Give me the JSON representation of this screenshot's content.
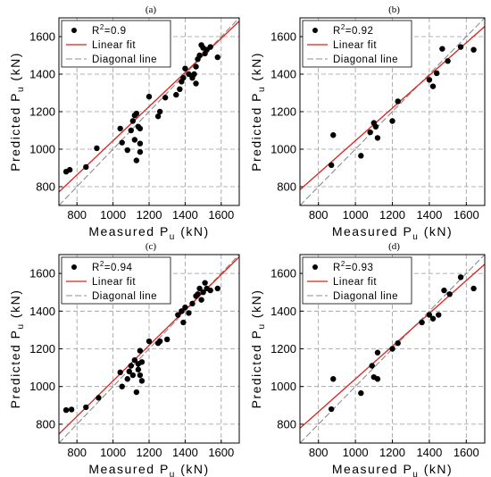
{
  "chart_data": [
    {
      "type": "scatter",
      "title": "(a)",
      "xlabel": "Measured P",
      "xlabel_sub": "u",
      "xlabel_unit": "(kN)",
      "ylabel": "Predicted P",
      "ylabel_sub": "u",
      "ylabel_unit": "(kN)",
      "xlim": [
        700,
        1700
      ],
      "ylim": [
        700,
        1700
      ],
      "xticks": [
        "800",
        "1000",
        "1200",
        "1400",
        "1600"
      ],
      "yticks": [
        "800",
        "1000",
        "1200",
        "1400",
        "1600"
      ],
      "grid": true,
      "legend": {
        "position": "top-left",
        "r2_label": "R",
        "r2_sup": "2",
        "r2_value": "=0.9",
        "linear_label": "Linear fit",
        "diagonal_label": "Diagonal line"
      },
      "fit": {
        "intercept": 135,
        "slope": 0.91
      },
      "points": [
        [
          740,
          880
        ],
        [
          760,
          890
        ],
        [
          850,
          905
        ],
        [
          910,
          1005
        ],
        [
          1040,
          1110
        ],
        [
          1050,
          1035
        ],
        [
          1080,
          995
        ],
        [
          1100,
          1100
        ],
        [
          1110,
          1150
        ],
        [
          1120,
          1180
        ],
        [
          1120,
          1050
        ],
        [
          1130,
          1190
        ],
        [
          1130,
          940
        ],
        [
          1140,
          1120
        ],
        [
          1150,
          1110
        ],
        [
          1150,
          1030
        ],
        [
          1150,
          985
        ],
        [
          1200,
          1280
        ],
        [
          1250,
          1175
        ],
        [
          1260,
          1200
        ],
        [
          1290,
          1275
        ],
        [
          1350,
          1290
        ],
        [
          1370,
          1320
        ],
        [
          1380,
          1360
        ],
        [
          1390,
          1380
        ],
        [
          1400,
          1430
        ],
        [
          1420,
          1400
        ],
        [
          1440,
          1380
        ],
        [
          1450,
          1400
        ],
        [
          1460,
          1350
        ],
        [
          1460,
          1440
        ],
        [
          1470,
          1480
        ],
        [
          1480,
          1500
        ],
        [
          1490,
          1555
        ],
        [
          1500,
          1540
        ],
        [
          1510,
          1510
        ],
        [
          1520,
          1530
        ],
        [
          1540,
          1545
        ],
        [
          1580,
          1490
        ]
      ]
    },
    {
      "type": "scatter",
      "title": "(b)",
      "xlabel": "Measured P",
      "xlabel_sub": "u",
      "xlabel_unit": "(kN)",
      "ylabel": "Predicted P",
      "ylabel_sub": "u",
      "ylabel_unit": "(kN)",
      "xlim": [
        700,
        1700
      ],
      "ylim": [
        700,
        1700
      ],
      "xticks": [
        "800",
        "1000",
        "1200",
        "1400",
        "1600"
      ],
      "yticks": [
        "800",
        "1000",
        "1200",
        "1400",
        "1600"
      ],
      "grid": true,
      "legend": {
        "position": "top-left",
        "r2_label": "R",
        "r2_sup": "2",
        "r2_value": "=0.92",
        "linear_label": "Linear fit",
        "diagonal_label": "Diagonal line"
      },
      "fit": {
        "intercept": 175,
        "slope": 0.87
      },
      "points": [
        [
          870,
          915
        ],
        [
          880,
          1075
        ],
        [
          1030,
          965
        ],
        [
          1080,
          1090
        ],
        [
          1100,
          1140
        ],
        [
          1110,
          1120
        ],
        [
          1120,
          1060
        ],
        [
          1200,
          1150
        ],
        [
          1230,
          1255
        ],
        [
          1400,
          1370
        ],
        [
          1420,
          1335
        ],
        [
          1440,
          1405
        ],
        [
          1470,
          1535
        ],
        [
          1500,
          1470
        ],
        [
          1570,
          1545
        ],
        [
          1640,
          1530
        ]
      ]
    },
    {
      "type": "scatter",
      "title": "(c)",
      "xlabel": "Measured P",
      "xlabel_sub": "u",
      "xlabel_unit": "(kN)",
      "ylabel": "Predicted P",
      "ylabel_sub": "u",
      "ylabel_unit": "(kN)",
      "xlim": [
        700,
        1700
      ],
      "ylim": [
        700,
        1700
      ],
      "xticks": [
        "800",
        "1000",
        "1200",
        "1400",
        "1600"
      ],
      "yticks": [
        "800",
        "1000",
        "1200",
        "1400",
        "1600"
      ],
      "grid": true,
      "legend": {
        "position": "top-left",
        "r2_label": "R",
        "r2_sup": "2",
        "r2_value": "=0.94",
        "linear_label": "Linear fit",
        "diagonal_label": "Diagonal line"
      },
      "fit": {
        "intercept": 90,
        "slope": 0.94
      },
      "points": [
        [
          740,
          875
        ],
        [
          770,
          878
        ],
        [
          850,
          890
        ],
        [
          920,
          940
        ],
        [
          1040,
          1075
        ],
        [
          1050,
          1000
        ],
        [
          1080,
          1040
        ],
        [
          1090,
          1080
        ],
        [
          1100,
          1110
        ],
        [
          1110,
          1060
        ],
        [
          1120,
          1140
        ],
        [
          1130,
          970
        ],
        [
          1140,
          1120
        ],
        [
          1140,
          1090
        ],
        [
          1150,
          1060
        ],
        [
          1150,
          1190
        ],
        [
          1160,
          1130
        ],
        [
          1160,
          1030
        ],
        [
          1200,
          1240
        ],
        [
          1250,
          1230
        ],
        [
          1260,
          1240
        ],
        [
          1300,
          1250
        ],
        [
          1360,
          1380
        ],
        [
          1380,
          1400
        ],
        [
          1390,
          1340
        ],
        [
          1400,
          1420
        ],
        [
          1420,
          1390
        ],
        [
          1440,
          1440
        ],
        [
          1460,
          1480
        ],
        [
          1470,
          1490
        ],
        [
          1480,
          1520
        ],
        [
          1490,
          1460
        ],
        [
          1500,
          1500
        ],
        [
          1510,
          1550
        ],
        [
          1520,
          1520
        ],
        [
          1540,
          1510
        ],
        [
          1580,
          1520
        ]
      ]
    },
    {
      "type": "scatter",
      "title": "(d)",
      "xlabel": "Measured P",
      "xlabel_sub": "u",
      "xlabel_unit": "(kN)",
      "ylabel": "Predicted P",
      "ylabel_sub": "u",
      "ylabel_unit": "(kN)",
      "xlim": [
        700,
        1700
      ],
      "ylim": [
        700,
        1700
      ],
      "xticks": [
        "800",
        "1000",
        "1200",
        "1400",
        "1600"
      ],
      "yticks": [
        "800",
        "1000",
        "1200",
        "1400",
        "1600"
      ],
      "grid": true,
      "legend": {
        "position": "top-left",
        "r2_label": "R",
        "r2_sup": "2",
        "r2_value": "=0.93",
        "linear_label": "Linear fit",
        "diagonal_label": "Diagonal line"
      },
      "fit": {
        "intercept": 170,
        "slope": 0.87
      },
      "points": [
        [
          870,
          880
        ],
        [
          880,
          1040
        ],
        [
          1030,
          965
        ],
        [
          1090,
          1110
        ],
        [
          1100,
          1050
        ],
        [
          1120,
          1180
        ],
        [
          1120,
          1040
        ],
        [
          1200,
          1200
        ],
        [
          1230,
          1230
        ],
        [
          1360,
          1340
        ],
        [
          1400,
          1380
        ],
        [
          1420,
          1360
        ],
        [
          1450,
          1380
        ],
        [
          1480,
          1510
        ],
        [
          1510,
          1490
        ],
        [
          1570,
          1580
        ],
        [
          1640,
          1520
        ]
      ]
    }
  ]
}
